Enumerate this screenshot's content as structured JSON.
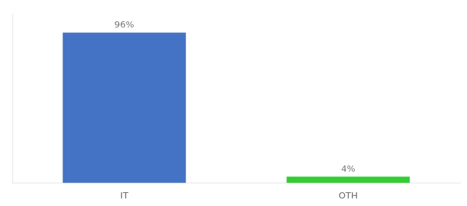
{
  "chart_data": {
    "type": "bar",
    "categories": [
      "IT",
      "OTH"
    ],
    "values": [
      96,
      4
    ],
    "value_labels": [
      "96%",
      "4%"
    ],
    "colors": [
      "#4472c4",
      "#33cc33"
    ],
    "ylim": [
      0,
      108
    ],
    "yticks": [],
    "grid": false,
    "tick_labels": "x",
    "data_labels": true
  }
}
